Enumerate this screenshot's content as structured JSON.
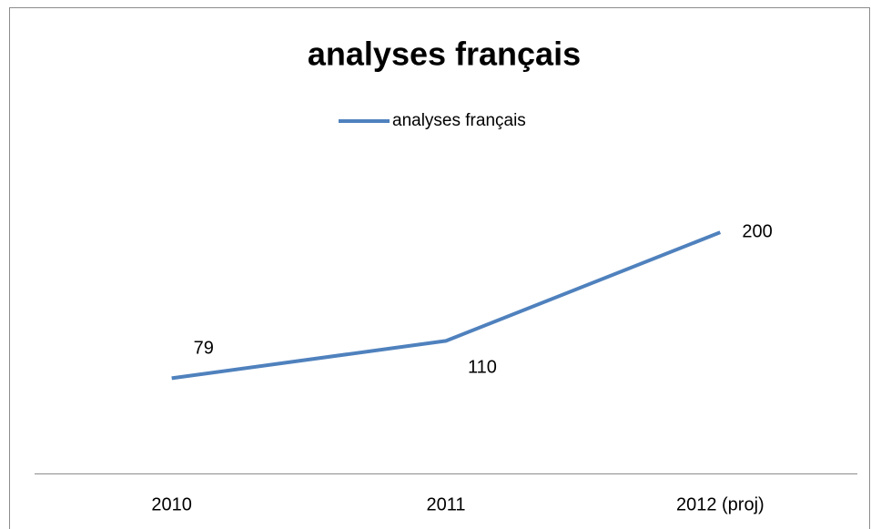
{
  "chart_data": {
    "type": "line",
    "title": "analyses français",
    "categories": [
      "2010",
      "2011",
      "2012 (proj)"
    ],
    "series": [
      {
        "name": "analyses français",
        "color": "#4f81bd",
        "values": [
          79,
          110,
          200
        ]
      }
    ],
    "ylim": [
      0,
      250
    ],
    "legend": "top"
  }
}
